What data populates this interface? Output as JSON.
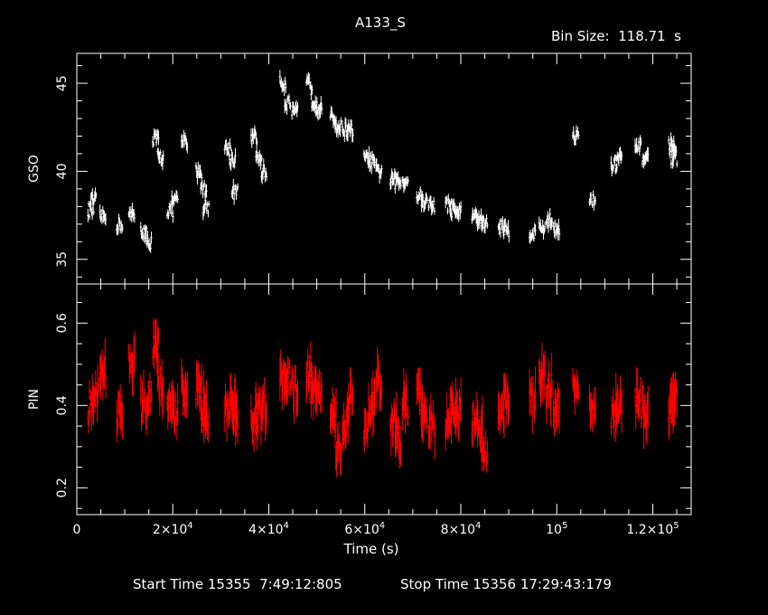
{
  "title": "A133_S",
  "bin_size_label": "Bin Size:  118.71  s",
  "footer": {
    "start_label": "Start Time 15355  7:49:12:805",
    "stop_label": "Stop Time 15356 17:29:43:179"
  },
  "chart_data": [
    {
      "type": "scatter",
      "panel": "top",
      "ylabel": "GSO",
      "xlabel": "",
      "xlim": [
        0,
        128000
      ],
      "ylim": [
        33.6,
        46.7
      ],
      "yticks": [
        35,
        40,
        45
      ],
      "yticklabels": [
        "35",
        "40",
        "45"
      ],
      "color": "#ffffff",
      "series": [
        {
          "x": [
            3000,
            3500,
            5500,
            9000,
            11500,
            14000,
            15000,
            16500,
            17500,
            19500,
            20500,
            22500,
            25500,
            26500,
            27000,
            31500,
            32500,
            33000,
            37000,
            38000,
            39000,
            43000,
            44000,
            45500,
            48500,
            49500,
            50500,
            53500,
            54500,
            56000,
            57000,
            60500,
            61500,
            63000,
            66000,
            67000,
            68500,
            71500,
            72500,
            74000,
            77500,
            78500,
            79500,
            83000,
            84000,
            85000,
            88500,
            89500,
            95000,
            97000,
            98500,
            100000,
            104000,
            107500,
            112000,
            113000,
            117000,
            118500,
            124000,
            124500
          ],
          "y": [
            37.8,
            38.3,
            37.4,
            37.0,
            37.5,
            36.6,
            36.0,
            41.8,
            40.8,
            37.8,
            38.3,
            41.7,
            40.0,
            39.0,
            38.0,
            41.3,
            40.7,
            38.8,
            41.9,
            40.8,
            40.0,
            45.0,
            43.9,
            43.3,
            45.0,
            44.0,
            43.6,
            43.0,
            42.5,
            42.4,
            42.3,
            40.7,
            40.5,
            40.0,
            39.5,
            39.4,
            39.5,
            38.6,
            38.3,
            38.1,
            38.1,
            37.8,
            37.7,
            37.5,
            37.2,
            37.0,
            36.9,
            36.7,
            36.5,
            36.8,
            37.2,
            36.8,
            42.0,
            38.3,
            40.3,
            40.7,
            41.3,
            40.8,
            41.5,
            40.8
          ]
        }
      ]
    },
    {
      "type": "scatter",
      "panel": "bottom",
      "ylabel": "PIN",
      "xlabel": "Time (s)",
      "xlim": [
        0,
        128000
      ],
      "ylim": [
        0.135,
        0.695
      ],
      "yticks": [
        0.2,
        0.4,
        0.6
      ],
      "yticklabels": [
        "0.2",
        "0.4",
        "0.6"
      ],
      "xticks": [
        20000,
        40000,
        60000,
        80000,
        100000,
        120000
      ],
      "xtick_mant": [
        "2",
        "4",
        "6",
        "8",
        "",
        "1.2"
      ],
      "xtick_exp": [
        "4",
        "4",
        "4",
        "4",
        "5",
        "5"
      ],
      "color": "#ff0000",
      "series": [
        {
          "x": [
            3000,
            4000,
            5500,
            9000,
            11500,
            14000,
            15000,
            16500,
            17500,
            19500,
            20500,
            22500,
            25500,
            26500,
            27000,
            31500,
            32500,
            33000,
            37000,
            38000,
            39000,
            43000,
            44000,
            45500,
            48500,
            49500,
            50500,
            53500,
            54500,
            56000,
            57000,
            60500,
            61500,
            63000,
            66000,
            67000,
            68500,
            71500,
            72500,
            74000,
            77500,
            78500,
            79500,
            83000,
            84000,
            85000,
            88500,
            89500,
            95000,
            97000,
            98500,
            100000,
            104000,
            107500,
            112000,
            113000,
            117000,
            118500,
            124000,
            124500
          ],
          "y": [
            0.4,
            0.42,
            0.48,
            0.38,
            0.5,
            0.4,
            0.42,
            0.55,
            0.45,
            0.4,
            0.38,
            0.44,
            0.45,
            0.4,
            0.36,
            0.4,
            0.42,
            0.38,
            0.36,
            0.38,
            0.4,
            0.46,
            0.48,
            0.44,
            0.48,
            0.44,
            0.42,
            0.38,
            0.3,
            0.34,
            0.42,
            0.36,
            0.4,
            0.45,
            0.35,
            0.32,
            0.4,
            0.42,
            0.38,
            0.36,
            0.34,
            0.4,
            0.38,
            0.36,
            0.34,
            0.3,
            0.38,
            0.42,
            0.42,
            0.48,
            0.44,
            0.4,
            0.44,
            0.4,
            0.36,
            0.4,
            0.4,
            0.38,
            0.4,
            0.42
          ]
        }
      ]
    }
  ]
}
